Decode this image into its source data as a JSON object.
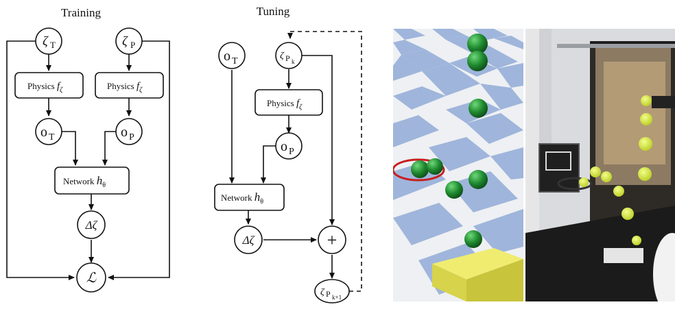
{
  "training": {
    "title": "Training",
    "zeta_t": {
      "sym": "ζ",
      "sub": "T"
    },
    "zeta_p": {
      "sym": "ζ",
      "sub": "P"
    },
    "physics_left": {
      "label": "Physics ",
      "f": "f",
      "sub": "ζ"
    },
    "physics_right": {
      "label": "Physics ",
      "f": "f",
      "sub": "ζ"
    },
    "o_t": {
      "sym": "o",
      "sub": "T"
    },
    "o_p": {
      "sym": "o",
      "sub": "P"
    },
    "network": {
      "label": "Network ",
      "h": "h",
      "sub": "θ"
    },
    "delta": "Δζ",
    "loss": "ℒ"
  },
  "tuning": {
    "title": "Tuning",
    "o_t": {
      "sym": "o",
      "sub": "T"
    },
    "zeta_pk": {
      "sym": "ζ",
      "sub": "P",
      "subsub": "k"
    },
    "physics": {
      "label": "Physics ",
      "f": "f",
      "sub": "ζ"
    },
    "o_p": {
      "sym": "o",
      "sub": "P"
    },
    "network": {
      "label": "Network ",
      "h": "h",
      "sub": "θ"
    },
    "delta": "Δζ",
    "plus": "+",
    "zeta_pk1": {
      "sym": "ζ",
      "sub": "P",
      "subsub": "k+1"
    }
  },
  "colors": {
    "sim_ball": "#1f8a2f",
    "sim_box": "#e2de49",
    "sim_ring": "#c81e1e",
    "tile_blue": "#9fb5db",
    "tennis_ball": "#d8ea3a"
  }
}
